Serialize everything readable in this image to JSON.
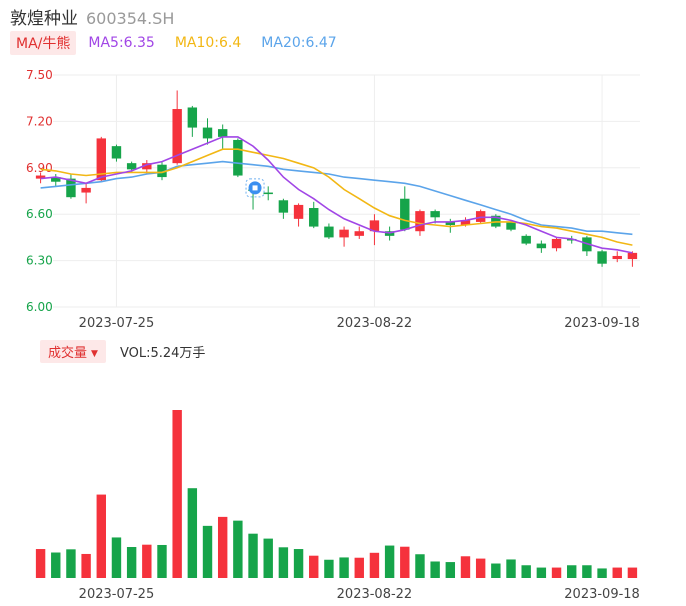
{
  "header": {
    "stock_name": "敦煌种业",
    "stock_code": "600354.SH"
  },
  "legend": {
    "tag": "MA/牛熊",
    "ma5": "MA5:6.35",
    "ma10": "MA10:6.4",
    "ma20": "MA20:6.47"
  },
  "volume_header": {
    "tag": "成交量",
    "value": "VOL:5.24万手"
  },
  "colors": {
    "up": "#f5323c",
    "down": "#16a44a",
    "ma5": "#a146e6",
    "ma10": "#f2b714",
    "ma20": "#5ba4ea",
    "grid": "#eeeeee",
    "up_axis_label": "#e03030",
    "down_axis_label": "#16a44a",
    "date_label": "#444444"
  },
  "chart_data": [
    {
      "type": "candlestick",
      "yaxis_ticks": [
        "7.50",
        "7.20",
        "6.90",
        "6.60",
        "6.30",
        "6.00"
      ],
      "ylim": [
        6.0,
        7.5
      ],
      "x_tick_labels": [
        {
          "index": 5,
          "label": "2023-07-25"
        },
        {
          "index": 22,
          "label": "2023-08-22"
        },
        {
          "index": 37,
          "label": "2023-09-18"
        }
      ],
      "candles": [
        {
          "o": 6.83,
          "c": 6.85,
          "h": 6.87,
          "l": 6.8
        },
        {
          "o": 6.84,
          "c": 6.81,
          "h": 6.86,
          "l": 6.78
        },
        {
          "o": 6.83,
          "c": 6.71,
          "h": 6.86,
          "l": 6.7
        },
        {
          "o": 6.74,
          "c": 6.77,
          "h": 6.8,
          "l": 6.67
        },
        {
          "o": 6.82,
          "c": 7.09,
          "h": 7.1,
          "l": 6.81
        },
        {
          "o": 7.04,
          "c": 6.96,
          "h": 7.05,
          "l": 6.94
        },
        {
          "o": 6.93,
          "c": 6.89,
          "h": 6.94,
          "l": 6.87
        },
        {
          "o": 6.89,
          "c": 6.93,
          "h": 6.95,
          "l": 6.86
        },
        {
          "o": 6.92,
          "c": 6.84,
          "h": 6.94,
          "l": 6.82
        },
        {
          "o": 6.93,
          "c": 7.28,
          "h": 7.4,
          "l": 6.92
        },
        {
          "o": 7.29,
          "c": 7.16,
          "h": 7.3,
          "l": 7.1
        },
        {
          "o": 7.16,
          "c": 7.09,
          "h": 7.22,
          "l": 7.05
        },
        {
          "o": 7.15,
          "c": 7.1,
          "h": 7.18,
          "l": 7.02
        },
        {
          "o": 7.08,
          "c": 6.85,
          "h": 7.09,
          "l": 6.84
        },
        {
          "o": 6.76,
          "c": 6.75,
          "h": 6.79,
          "l": 6.63
        },
        {
          "o": 6.74,
          "c": 6.73,
          "h": 6.78,
          "l": 6.69
        },
        {
          "o": 6.69,
          "c": 6.61,
          "h": 6.7,
          "l": 6.57
        },
        {
          "o": 6.57,
          "c": 6.66,
          "h": 6.67,
          "l": 6.52
        },
        {
          "o": 6.64,
          "c": 6.52,
          "h": 6.68,
          "l": 6.51
        },
        {
          "o": 6.52,
          "c": 6.45,
          "h": 6.54,
          "l": 6.44
        },
        {
          "o": 6.45,
          "c": 6.5,
          "h": 6.52,
          "l": 6.39
        },
        {
          "o": 6.46,
          "c": 6.49,
          "h": 6.52,
          "l": 6.44
        },
        {
          "o": 6.49,
          "c": 6.56,
          "h": 6.6,
          "l": 6.4
        },
        {
          "o": 6.49,
          "c": 6.46,
          "h": 6.52,
          "l": 6.43
        },
        {
          "o": 6.7,
          "c": 6.5,
          "h": 6.78,
          "l": 6.49
        },
        {
          "o": 6.49,
          "c": 6.62,
          "h": 6.63,
          "l": 6.46
        },
        {
          "o": 6.62,
          "c": 6.58,
          "h": 6.63,
          "l": 6.54
        },
        {
          "o": 6.55,
          "c": 6.53,
          "h": 6.57,
          "l": 6.48
        },
        {
          "o": 6.53,
          "c": 6.56,
          "h": 6.58,
          "l": 6.52
        },
        {
          "o": 6.55,
          "c": 6.62,
          "h": 6.63,
          "l": 6.54
        },
        {
          "o": 6.59,
          "c": 6.52,
          "h": 6.6,
          "l": 6.51
        },
        {
          "o": 6.55,
          "c": 6.5,
          "h": 6.56,
          "l": 6.49
        },
        {
          "o": 6.46,
          "c": 6.41,
          "h": 6.47,
          "l": 6.4
        },
        {
          "o": 6.41,
          "c": 6.38,
          "h": 6.43,
          "l": 6.35
        },
        {
          "o": 6.38,
          "c": 6.44,
          "h": 6.45,
          "l": 6.36
        },
        {
          "o": 6.44,
          "c": 6.43,
          "h": 6.46,
          "l": 6.41
        },
        {
          "o": 6.45,
          "c": 6.36,
          "h": 6.46,
          "l": 6.33
        },
        {
          "o": 6.36,
          "c": 6.28,
          "h": 6.37,
          "l": 6.26
        },
        {
          "o": 6.31,
          "c": 6.33,
          "h": 6.36,
          "l": 6.29
        },
        {
          "o": 6.31,
          "c": 6.35,
          "h": 6.36,
          "l": 6.26
        }
      ],
      "ma5": [
        6.83,
        6.84,
        6.82,
        6.8,
        6.84,
        6.86,
        6.88,
        6.92,
        6.94,
        6.98,
        7.02,
        7.06,
        7.1,
        7.1,
        7.04,
        6.95,
        6.84,
        6.76,
        6.7,
        6.63,
        6.57,
        6.53,
        6.49,
        6.48,
        6.5,
        6.53,
        6.55,
        6.55,
        6.56,
        6.58,
        6.58,
        6.56,
        6.53,
        6.49,
        6.45,
        6.44,
        6.41,
        6.38,
        6.37,
        6.35
      ],
      "ma10": [
        6.89,
        6.88,
        6.86,
        6.85,
        6.86,
        6.87,
        6.87,
        6.87,
        6.87,
        6.9,
        6.94,
        6.98,
        7.02,
        7.02,
        7.0,
        6.98,
        6.96,
        6.93,
        6.9,
        6.84,
        6.76,
        6.7,
        6.64,
        6.59,
        6.56,
        6.54,
        6.53,
        6.52,
        6.53,
        6.54,
        6.55,
        6.55,
        6.54,
        6.52,
        6.51,
        6.49,
        6.47,
        6.45,
        6.42,
        6.4
      ],
      "ma20": [
        6.77,
        6.78,
        6.79,
        6.8,
        6.81,
        6.83,
        6.84,
        6.86,
        6.87,
        6.91,
        6.92,
        6.93,
        6.94,
        6.93,
        6.92,
        6.91,
        6.89,
        6.88,
        6.87,
        6.86,
        6.84,
        6.83,
        6.82,
        6.81,
        6.8,
        6.78,
        6.75,
        6.72,
        6.69,
        6.66,
        6.63,
        6.6,
        6.56,
        6.53,
        6.52,
        6.51,
        6.49,
        6.49,
        6.48,
        6.47
      ],
      "marker_index": 14
    },
    {
      "type": "bar",
      "name": "volume",
      "values": [
        1.0,
        0.88,
        0.99,
        0.83,
        2.88,
        1.4,
        1.07,
        1.15,
        1.14,
        5.8,
        3.1,
        1.8,
        2.11,
        1.98,
        1.53,
        1.36,
        1.06,
        1.0,
        0.77,
        0.63,
        0.71,
        0.7,
        0.87,
        1.12,
        1.08,
        0.82,
        0.57,
        0.55,
        0.75,
        0.67,
        0.5,
        0.64,
        0.44,
        0.36,
        0.36,
        0.44,
        0.44,
        0.33,
        0.36,
        0.36
      ],
      "up": [
        true,
        false,
        false,
        true,
        true,
        false,
        false,
        true,
        false,
        true,
        false,
        false,
        true,
        false,
        false,
        false,
        false,
        false,
        true,
        false,
        false,
        true,
        true,
        false,
        true,
        false,
        false,
        false,
        true,
        true,
        false,
        false,
        false,
        false,
        true,
        false,
        false,
        false,
        true,
        true
      ]
    }
  ]
}
